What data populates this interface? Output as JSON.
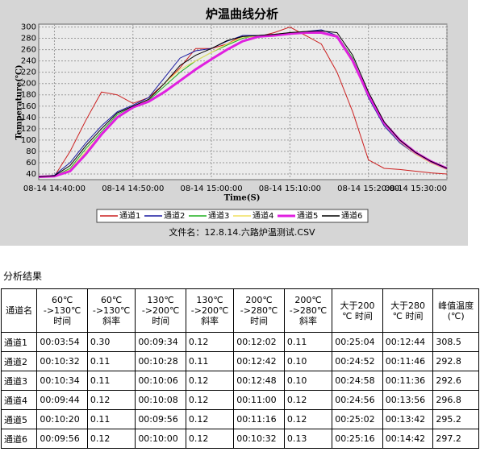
{
  "chart_data": {
    "type": "line",
    "title": "炉温曲线分析",
    "y_label": "Temperature(℃)",
    "x_label": "Time(S)",
    "x": [
      "08-14 14:38:00",
      "08-14 14:40:00",
      "08-14 14:42:00",
      "08-14 14:44:00",
      "08-14 14:46:00",
      "08-14 14:48:00",
      "08-14 14:50:00",
      "08-14 14:52:00",
      "08-14 14:54:00",
      "08-14 14:56:00",
      "08-14 14:58:00",
      "08-14 15:00:00",
      "08-14 15:02:00",
      "08-14 15:04:00",
      "08-14 15:06:00",
      "08-14 15:08:00",
      "08-14 15:10:00",
      "08-14 15:12:00",
      "08-14 15:14:00",
      "08-14 15:16:00",
      "08-14 15:18:00",
      "08-14 15:20:00",
      "08-14 15:22:00",
      "08-14 15:24:00",
      "08-14 15:26:00",
      "08-14 15:28:00",
      "08-14 15:30:00"
    ],
    "series": [
      {
        "name": "通道1",
        "color": "#cc2020",
        "values": [
          35,
          36,
          80,
          135,
          185,
          180,
          165,
          175,
          200,
          228,
          262,
          262,
          270,
          285,
          283,
          290,
          300,
          285,
          270,
          220,
          150,
          65,
          50,
          48,
          45,
          42,
          40
        ]
      },
      {
        "name": "通道2",
        "color": "#1a1aa0",
        "values": [
          35,
          38,
          60,
          95,
          125,
          150,
          162,
          175,
          210,
          245,
          258,
          262,
          275,
          285,
          285,
          287,
          290,
          292,
          295,
          285,
          240,
          175,
          125,
          95,
          75,
          60,
          50
        ]
      },
      {
        "name": "通道3",
        "color": "#20b020",
        "values": [
          35,
          36,
          50,
          85,
          115,
          145,
          160,
          170,
          195,
          220,
          240,
          255,
          268,
          280,
          285,
          285,
          288,
          290,
          290,
          285,
          245,
          180,
          128,
          98,
          76,
          60,
          48
        ]
      },
      {
        "name": "通道4",
        "color": "#f0e060",
        "values": [
          35,
          36,
          48,
          80,
          112,
          142,
          158,
          172,
          200,
          225,
          240,
          255,
          270,
          282,
          283,
          287,
          290,
          292,
          290,
          285,
          242,
          178,
          128,
          97,
          75,
          59,
          48
        ]
      },
      {
        "name": "通道5",
        "color": "#e020e0",
        "values": [
          35,
          36,
          45,
          75,
          110,
          140,
          158,
          168,
          185,
          205,
          225,
          243,
          260,
          275,
          283,
          285,
          288,
          290,
          290,
          283,
          240,
          180,
          130,
          100,
          78,
          62,
          50
        ]
      },
      {
        "name": "通道6",
        "color": "#000000",
        "values": [
          35,
          37,
          55,
          90,
          120,
          148,
          160,
          172,
          200,
          232,
          250,
          262,
          276,
          283,
          285,
          287,
          290,
          292,
          293,
          290,
          250,
          185,
          132,
          100,
          78,
          62,
          50
        ]
      }
    ],
    "xlim": [
      "08-14 14:38:00",
      "08-14 15:30:00"
    ],
    "xticks": [
      "08-14 14:40:00",
      "08-14 14:50:00",
      "08-14 15:00:00",
      "08-14 15:10:00",
      "08-14 15:20:00",
      "08-14 15:30:00"
    ],
    "ylim": [
      30,
      305
    ],
    "yticks": [
      40,
      60,
      80,
      100,
      120,
      140,
      160,
      180,
      200,
      220,
      240,
      260,
      280,
      300
    ],
    "grid": true
  },
  "file_caption": "文件名：12.8.14.六路炉温测试.CSV",
  "section_title": "分析结果",
  "table": {
    "header": [
      "通道名",
      "60℃\n->130℃\n时间",
      "60℃\n->130℃\n斜率",
      "130℃\n->200℃\n时间",
      "130℃\n->200℃\n斜率",
      "200℃\n->280℃\n时间",
      "200℃\n->280℃\n斜率",
      "大于200\n℃ 时间",
      "大于280\n℃ 时间",
      "峰值温度\n(℃)"
    ],
    "rows": [
      [
        "通道1",
        "00:03:54",
        "0.30",
        "00:09:34",
        "0.12",
        "00:12:02",
        "0.11",
        "00:25:04",
        "00:12:44",
        "308.5"
      ],
      [
        "通道2",
        "00:10:32",
        "0.11",
        "00:10:28",
        "0.11",
        "00:12:42",
        "0.10",
        "00:24:52",
        "00:11:46",
        "292.8"
      ],
      [
        "通道3",
        "00:10:34",
        "0.11",
        "00:10:06",
        "0.12",
        "00:12:48",
        "0.10",
        "00:24:58",
        "00:11:36",
        "292.6"
      ],
      [
        "通道4",
        "00:09:44",
        "0.12",
        "00:10:08",
        "0.12",
        "00:11:00",
        "0.12",
        "00:24:56",
        "00:13:56",
        "296.8"
      ],
      [
        "通道5",
        "00:10:20",
        "0.11",
        "00:09:56",
        "0.12",
        "00:11:16",
        "0.12",
        "00:25:02",
        "00:13:42",
        "295.2"
      ],
      [
        "通道6",
        "00:09:56",
        "0.12",
        "00:10:00",
        "0.12",
        "00:10:32",
        "0.13",
        "00:25:16",
        "00:14:42",
        "297.2"
      ]
    ]
  }
}
